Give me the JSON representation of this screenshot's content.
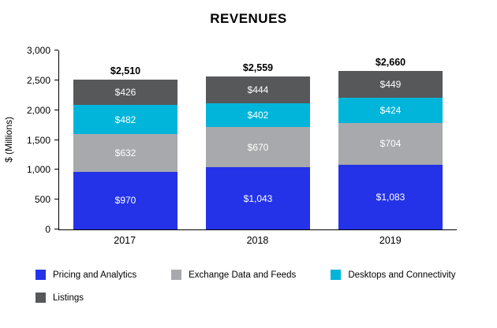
{
  "chart_data": {
    "type": "bar",
    "stacked": true,
    "title": "REVENUES",
    "ylabel": "$ (Millions)",
    "xlabel": "",
    "ylim": [
      0,
      3000
    ],
    "ytick_step": 500,
    "ytick_labels": [
      "0",
      "500",
      "1,000",
      "1,500",
      "2,000",
      "2,500",
      "3,000"
    ],
    "categories": [
      "2017",
      "2018",
      "2019"
    ],
    "series": [
      {
        "name": "Pricing and Analytics",
        "color": "#2433e8",
        "values": [
          970,
          1043,
          1083
        ],
        "labels": [
          "$970",
          "$1,043",
          "$1,083"
        ]
      },
      {
        "name": "Exchange Data and Feeds",
        "color": "#a7a9ac",
        "values": [
          632,
          670,
          704
        ],
        "labels": [
          "$632",
          "$670",
          "$704"
        ]
      },
      {
        "name": "Desktops and Connectivity",
        "color": "#00b5d9",
        "values": [
          482,
          402,
          424
        ],
        "labels": [
          "$482",
          "$402",
          "$424"
        ]
      },
      {
        "name": "Listings",
        "color": "#56585a",
        "values": [
          426,
          444,
          449
        ],
        "labels": [
          "$426",
          "$444",
          "$449"
        ]
      }
    ],
    "totals": [
      "$2,510",
      "$2,559",
      "$2,660"
    ],
    "legend_position": "bottom",
    "grid": false
  }
}
